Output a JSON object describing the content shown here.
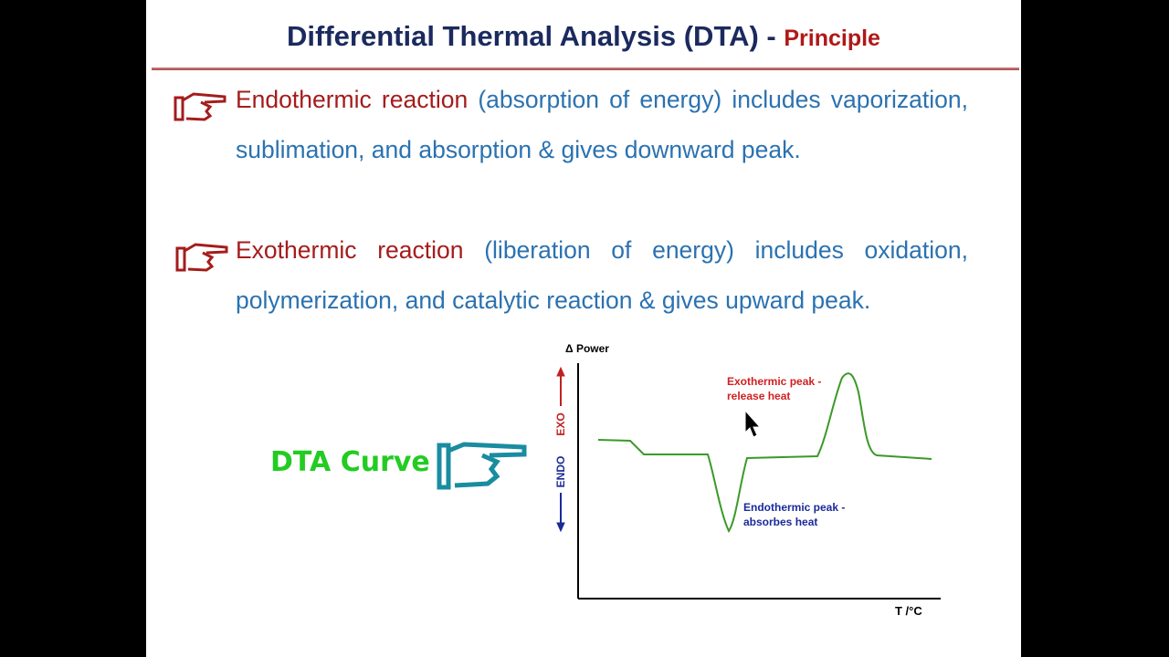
{
  "header": {
    "title": "Differential Thermal Analysis (DTA)",
    "separator": "-",
    "subtitle": "Principle"
  },
  "bullets": [
    {
      "term": "Endothermic reaction",
      "text": "(absorption of energy) includes vaporization, sublimation, and absorption & gives downward peak."
    },
    {
      "term": "Exothermic reaction",
      "text": "(liberation of energy) includes oxidation, polymerization, and catalytic reaction & gives upward peak."
    }
  ],
  "curve_label": "DTA Curve",
  "diagram": {
    "y_label": "Δ Power",
    "exo_label": "EXO",
    "endo_label": "ENDO",
    "x_label": "T /°C",
    "exo_annotation": [
      "Exothermic peak -",
      "release heat"
    ],
    "endo_annotation": [
      "Endothermic peak -",
      "absorbes heat"
    ]
  }
}
